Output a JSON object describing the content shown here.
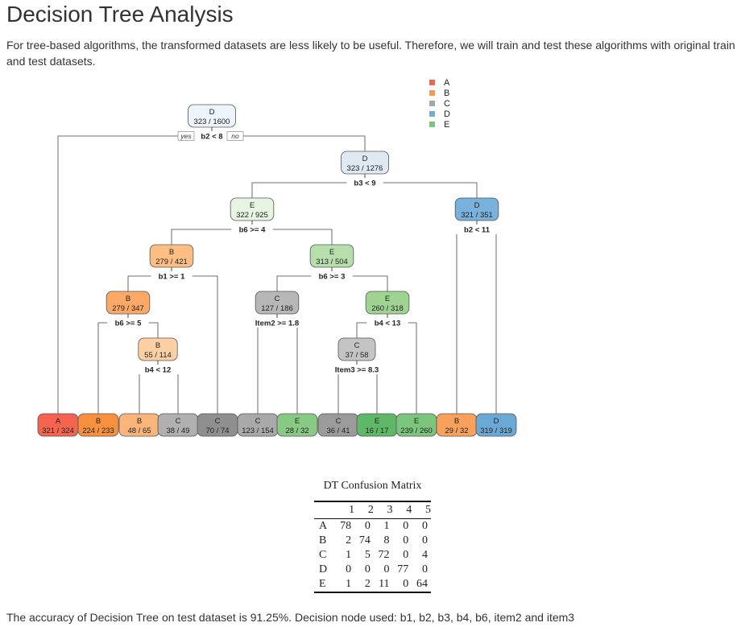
{
  "page": {
    "title": "Decision Tree Analysis",
    "intro": "For tree-based algorithms, the transformed datasets are less likely to be useful. Therefore, we will train and test these algorithms with original train and test datasets.",
    "accuracy": "The accuracy of Decision Tree on test dataset is 91.25%. Decision node used: b1, b2, b3, b4, b6, item2 and item3"
  },
  "legend": [
    {
      "label": "A",
      "color": "#f4644e"
    },
    {
      "label": "B",
      "color": "#f79a4e"
    },
    {
      "label": "C",
      "color": "#a6a6a6"
    },
    {
      "label": "D",
      "color": "#6baed6"
    },
    {
      "label": "E",
      "color": "#78c679"
    }
  ],
  "tree": {
    "yes_label": "yes",
    "no_label": "no",
    "nodes": [
      {
        "id": "root",
        "cls": "D",
        "frac": "323 / 1600",
        "split": "b2 < 8",
        "color": "#eef4fb"
      },
      {
        "id": "n2",
        "cls": "D",
        "frac": "323 / 1276",
        "split": "b3 < 9",
        "color": "#dfe9f4"
      },
      {
        "id": "n4",
        "cls": "E",
        "frac": "322 / 925",
        "split": "b6 >= 4",
        "color": "#e7f4e2"
      },
      {
        "id": "n5",
        "cls": "D",
        "frac": "321 / 351",
        "split": "b2 < 11",
        "color": "#78b1db"
      },
      {
        "id": "n8",
        "cls": "B",
        "frac": "279 / 421",
        "split": "b1 >= 1",
        "color": "#fdbe84"
      },
      {
        "id": "n9",
        "cls": "E",
        "frac": "313 / 504",
        "split": "b6 >= 3",
        "color": "#b7dfae"
      },
      {
        "id": "n16",
        "cls": "B",
        "frac": "279 / 347",
        "split": "b6 >= 5",
        "color": "#fca866"
      },
      {
        "id": "n18",
        "cls": "C",
        "frac": "127 / 186",
        "split": "Item2 >= 1.8",
        "color": "#b7b7b7"
      },
      {
        "id": "n19",
        "cls": "E",
        "frac": "260 / 318",
        "split": "b4 < 13",
        "color": "#9fd392"
      },
      {
        "id": "n33",
        "cls": "B",
        "frac": "55 / 114",
        "split": "b4 < 12",
        "color": "#fdd0a4"
      },
      {
        "id": "n38",
        "cls": "C",
        "frac": "37 / 58",
        "split": "Item3 >= 8.3",
        "color": "#c4c4c4"
      },
      {
        "id": "l1",
        "cls": "A",
        "frac": "321 / 324",
        "split": "",
        "color": "#f4644e"
      },
      {
        "id": "l2",
        "cls": "B",
        "frac": "224 / 233",
        "split": "",
        "color": "#f8903e"
      },
      {
        "id": "l3",
        "cls": "B",
        "frac": "48 / 65",
        "split": "",
        "color": "#fbb57a"
      },
      {
        "id": "l4",
        "cls": "C",
        "frac": "38 / 49",
        "split": "",
        "color": "#b0b0b0"
      },
      {
        "id": "l5",
        "cls": "C",
        "frac": "70 / 74",
        "split": "",
        "color": "#8f8f8f"
      },
      {
        "id": "l6",
        "cls": "C",
        "frac": "123 / 154",
        "split": "",
        "color": "#a9a9a9"
      },
      {
        "id": "l7",
        "cls": "E",
        "frac": "28 / 32",
        "split": "",
        "color": "#88c984"
      },
      {
        "id": "l8",
        "cls": "C",
        "frac": "36 / 41",
        "split": "",
        "color": "#9b9b9b"
      },
      {
        "id": "l9",
        "cls": "E",
        "frac": "16 / 17",
        "split": "",
        "color": "#5fb768"
      },
      {
        "id": "l10",
        "cls": "E",
        "frac": "239 / 260",
        "split": "",
        "color": "#7cc57c"
      },
      {
        "id": "l11",
        "cls": "B",
        "frac": "29 / 32",
        "split": "",
        "color": "#f9a05a"
      },
      {
        "id": "l12",
        "cls": "D",
        "frac": "319 / 319",
        "split": "",
        "color": "#6aa8d6"
      }
    ]
  },
  "confusion": {
    "caption": "DT Confusion Matrix",
    "columns": [
      "",
      "1",
      "2",
      "3",
      "4",
      "5"
    ],
    "rows": [
      [
        "A",
        "78",
        "0",
        "1",
        "0",
        "0"
      ],
      [
        "B",
        "2",
        "74",
        "8",
        "0",
        "0"
      ],
      [
        "C",
        "1",
        "5",
        "72",
        "0",
        "4"
      ],
      [
        "D",
        "0",
        "0",
        "0",
        "77",
        "0"
      ],
      [
        "E",
        "1",
        "2",
        "11",
        "0",
        "64"
      ]
    ]
  }
}
